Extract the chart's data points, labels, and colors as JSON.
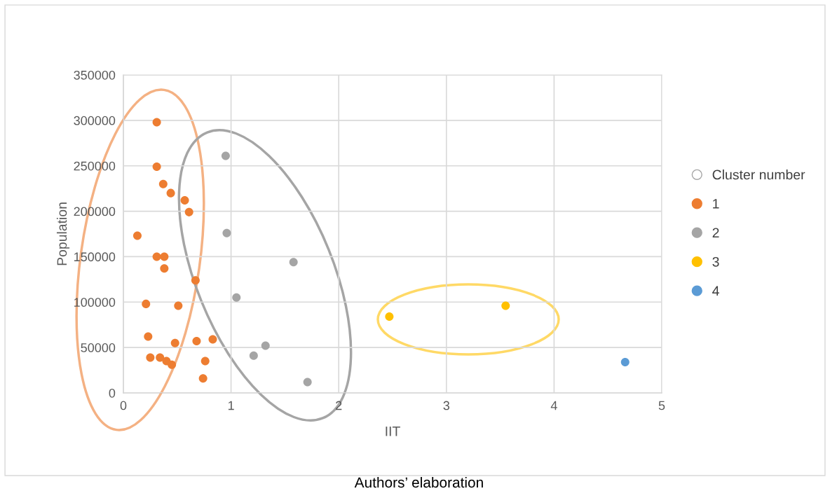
{
  "chart_data": {
    "type": "scatter",
    "xlabel": "IIT",
    "ylabel": "Population",
    "legend_title": "Cluster number",
    "annotations": [
      "Authors’ elaboration"
    ],
    "series": [
      {
        "name": "1",
        "color": "#ed7d31",
        "x": [
          0.31,
          0.31,
          0.37,
          0.44,
          0.57,
          0.61,
          0.13,
          0.31,
          0.38,
          0.38,
          0.67,
          0.21,
          0.51,
          0.23,
          0.48,
          0.68,
          0.83,
          0.25,
          0.34,
          0.4,
          0.45,
          0.76,
          0.74
        ],
        "values": [
          298000,
          249000,
          230000,
          220000,
          212000,
          199000,
          173000,
          150000,
          150000,
          137000,
          124000,
          98000,
          96000,
          62000,
          55000,
          57000,
          59000,
          39000,
          39000,
          35000,
          31000,
          35000,
          16000
        ]
      },
      {
        "name": "2",
        "color": "#a5a5a5",
        "x": [
          0.95,
          0.96,
          1.58,
          1.05,
          1.32,
          1.21,
          1.71
        ],
        "values": [
          261000,
          176000,
          144000,
          105000,
          52000,
          41000,
          12000
        ]
      },
      {
        "name": "3",
        "color": "#ffc000",
        "x": [
          2.47,
          3.55
        ],
        "values": [
          84000,
          96000
        ]
      },
      {
        "name": "4",
        "color": "#5b9bd5",
        "x": [
          4.66
        ],
        "values": [
          34000
        ]
      }
    ],
    "xlim": [
      0,
      5
    ],
    "xticks": [
      0,
      1,
      2,
      3,
      4,
      5
    ],
    "ylim": [
      0,
      350000
    ],
    "yticks": [
      0,
      50000,
      100000,
      150000,
      200000,
      250000,
      300000,
      350000
    ],
    "grid": true,
    "legend": "right",
    "marker": "circle"
  }
}
